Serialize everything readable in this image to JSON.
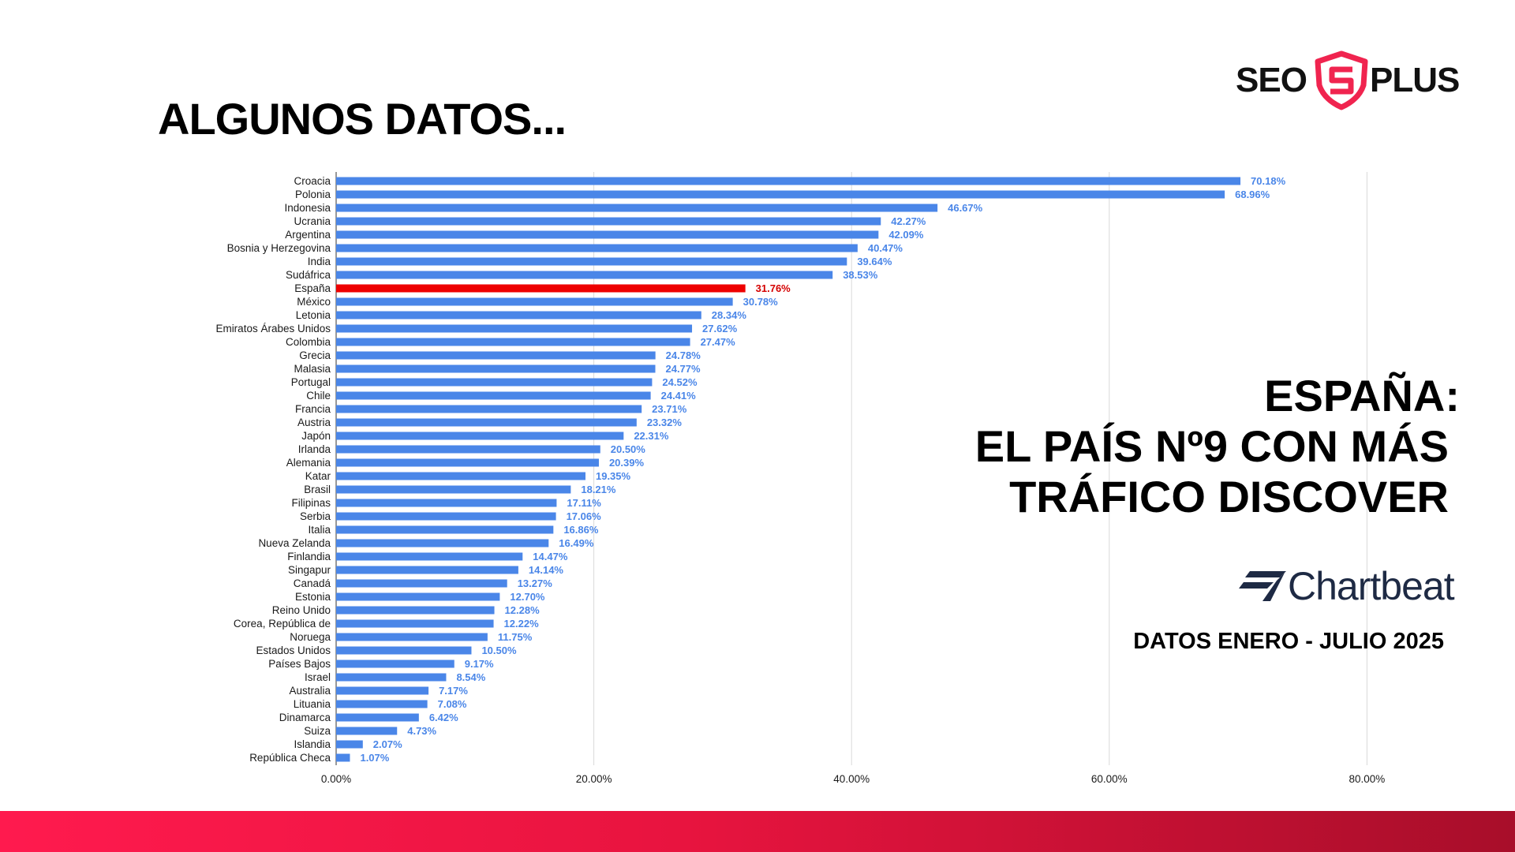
{
  "slide": {
    "title": "ALGUNOS DATOS...",
    "headline": [
      "ESPAÑA:",
      "EL PAÍS Nº9 CON MÁS",
      "TRÁFICO DISCOVER"
    ],
    "date_note": "DATOS ENERO - JULIO 2025"
  },
  "logo": {
    "left": "SEO",
    "right": "PLUS",
    "shield_color": "#f0244f"
  },
  "source_logo": {
    "text": "Chartbeat",
    "color": "#1e2a44"
  },
  "colors": {
    "bar": "#4a86e8",
    "highlight": "#ee0000",
    "gradient_start": "#ff1a4e",
    "gradient_end": "#a80e2a"
  },
  "chart_data": {
    "type": "bar",
    "orientation": "horizontal",
    "categories": [
      "Croacia",
      "Polonia",
      "Indonesia",
      "Ucrania",
      "Argentina",
      "Bosnia y Herzegovina",
      "India",
      "Sudáfrica",
      "España",
      "México",
      "Letonia",
      "Emiratos Árabes Unidos",
      "Colombia",
      "Grecia",
      "Malasia",
      "Portugal",
      "Chile",
      "Francia",
      "Austria",
      "Japón",
      "Irlanda",
      "Alemania",
      "Katar",
      "Brasil",
      "Filipinas",
      "Serbia",
      "Italia",
      "Nueva Zelanda",
      "Finlandia",
      "Singapur",
      "Canadá",
      "Estonia",
      "Reino Unido",
      "Corea, República de",
      "Noruega",
      "Estados Unidos",
      "Países Bajos",
      "Israel",
      "Australia",
      "Lituania",
      "Dinamarca",
      "Suiza",
      "Islandia",
      "República Checa"
    ],
    "values": [
      70.18,
      68.96,
      46.67,
      42.27,
      42.09,
      40.47,
      39.64,
      38.53,
      31.76,
      30.78,
      28.34,
      27.62,
      27.47,
      24.78,
      24.77,
      24.52,
      24.41,
      23.71,
      23.32,
      22.31,
      20.5,
      20.39,
      19.35,
      18.21,
      17.11,
      17.06,
      16.86,
      16.49,
      14.47,
      14.14,
      13.27,
      12.7,
      12.28,
      12.22,
      11.75,
      10.5,
      9.17,
      8.54,
      7.17,
      7.08,
      6.42,
      4.73,
      2.07,
      1.07
    ],
    "value_labels": [
      "70.18%",
      "68.96%",
      "46.67%",
      "42.27%",
      "42.09%",
      "40.47%",
      "39.64%",
      "38.53%",
      "31.76%",
      "30.78%",
      "28.34%",
      "27.62%",
      "27.47%",
      "24.78%",
      "24.77%",
      "24.52%",
      "24.41%",
      "23.71%",
      "23.32%",
      "22.31%",
      "20.50%",
      "20.39%",
      "19.35%",
      "18.21%",
      "17.11%",
      "17.06%",
      "16.86%",
      "16.49%",
      "14.47%",
      "14.14%",
      "13.27%",
      "12.70%",
      "12.28%",
      "12.22%",
      "11.75%",
      "10.50%",
      "9.17%",
      "8.54%",
      "7.17%",
      "7.08%",
      "6.42%",
      "4.73%",
      "2.07%",
      "1.07%"
    ],
    "highlight": "España",
    "xlim": [
      0,
      80
    ],
    "x_ticks": [
      0,
      20,
      40,
      60,
      80
    ],
    "x_tick_labels": [
      "0.00%",
      "20.00%",
      "40.00%",
      "60.00%",
      "80.00%"
    ],
    "grid": true,
    "legend": false
  }
}
